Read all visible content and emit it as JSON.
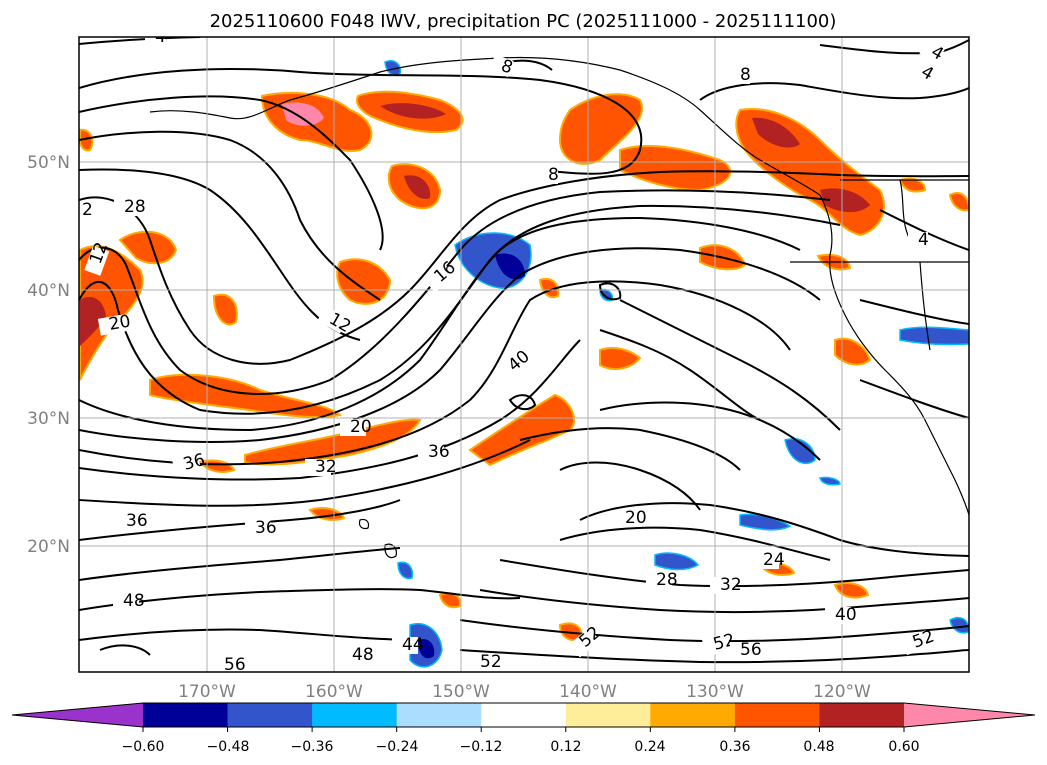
{
  "title": "2025110600 F048 IWV, precipitation PC (2025111000 - 2025111100)",
  "map": {
    "lat_labels": [
      "50°N",
      "40°N",
      "30°N",
      "20°N"
    ],
    "lon_labels": [
      "170°W",
      "160°W",
      "150°W",
      "140°W",
      "130°W",
      "120°W"
    ],
    "gridlines": true
  },
  "colorbar": {
    "tick_labels": [
      "−0.60",
      "−0.48",
      "−0.36",
      "−0.24",
      "−0.12",
      "0.12",
      "0.24",
      "0.36",
      "0.48",
      "0.60"
    ],
    "colors": [
      "#9933cc",
      "#000099",
      "#3355cc",
      "#00bbff",
      "#aaddff",
      "#ffffff",
      "#ffee99",
      "#ffaa00",
      "#ff5500",
      "#b22222",
      "#ff88aa"
    ],
    "extend": "both"
  },
  "contour_labels": [
    "4",
    "8",
    "8",
    "4",
    "4",
    "8",
    "2",
    "28",
    "12",
    "16",
    "4",
    "20",
    "12",
    "40",
    "20",
    "36",
    "32",
    "36",
    "36",
    "36",
    "20",
    "24",
    "28",
    "32",
    "48",
    "40",
    "44",
    "48",
    "52",
    "52",
    "52",
    "56",
    "52",
    "56"
  ]
}
